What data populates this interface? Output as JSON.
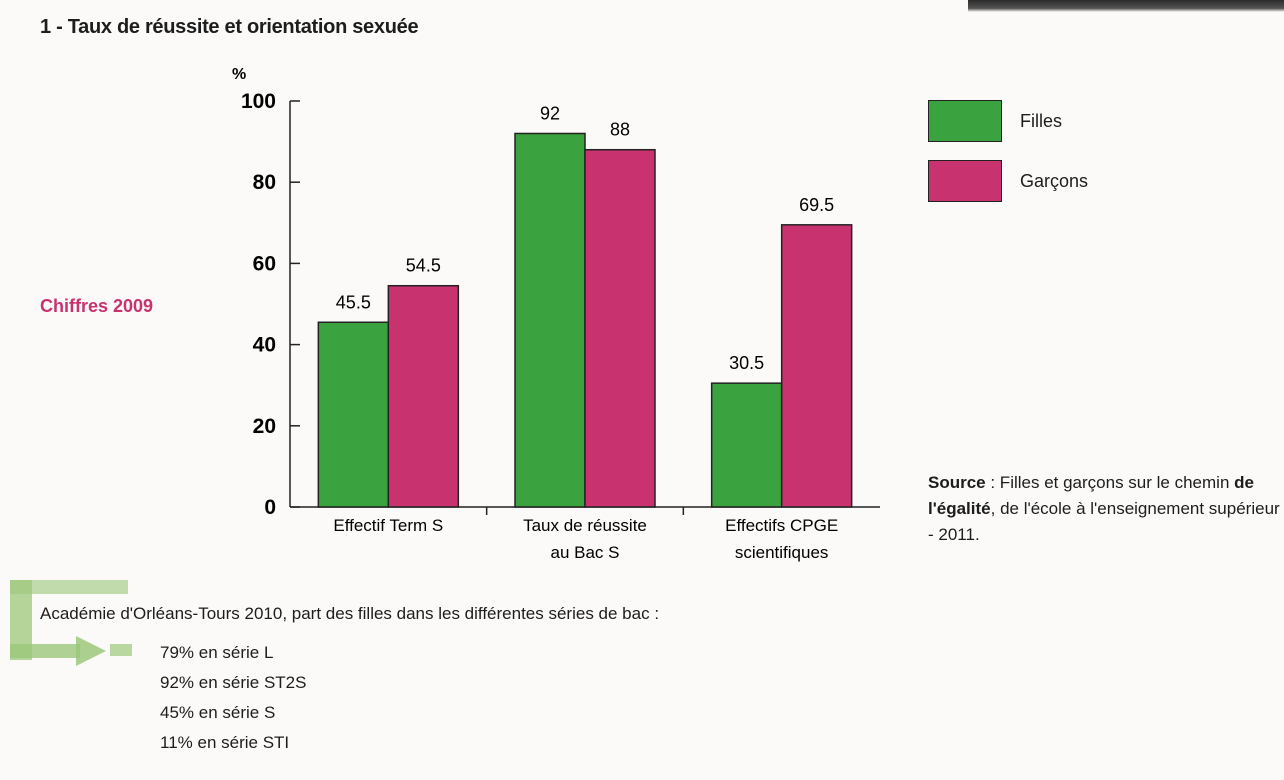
{
  "title": "1 - Taux de réussite et orientation sexuée",
  "note": "Chiffres 2009",
  "colors": {
    "filles": "#3aa33f",
    "garcons": "#c8336f",
    "accent": "#c8336f",
    "arrow": "#9cc77b"
  },
  "chart_data": {
    "type": "bar",
    "ylabel": "%",
    "ylim": [
      0,
      100
    ],
    "yticks": [
      "0",
      "20",
      "40",
      "60",
      "80",
      "100"
    ],
    "categories": [
      "Effectif Term S",
      "Taux de réussite au Bac S",
      "Effectifs CPGE scientifiques"
    ],
    "series": [
      {
        "name": "Filles",
        "values": [
          45.5,
          92,
          30.5
        ],
        "labels": [
          "45.5",
          "92",
          "30.5"
        ]
      },
      {
        "name": "Garçons",
        "values": [
          54.5,
          88,
          69.5
        ],
        "labels": [
          "54.5",
          "88",
          "69.5"
        ]
      }
    ],
    "legend": "right"
  },
  "legend": {
    "filles": "Filles",
    "garcons": "Garçons"
  },
  "source": {
    "label": "Source",
    "text_1": " : Filles et garçons sur le chemin ",
    "bold": "de l'égalité",
    "text_2": ", de l'école à l'enseignement supérieur - 2011."
  },
  "academie": {
    "heading": "Académie d'Orléans-Tours 2010, part des filles dans les différentes séries de bac :",
    "items": [
      "79% en série L",
      "92% en série ST2S",
      "45% en série S",
      "11% en série STI"
    ]
  }
}
